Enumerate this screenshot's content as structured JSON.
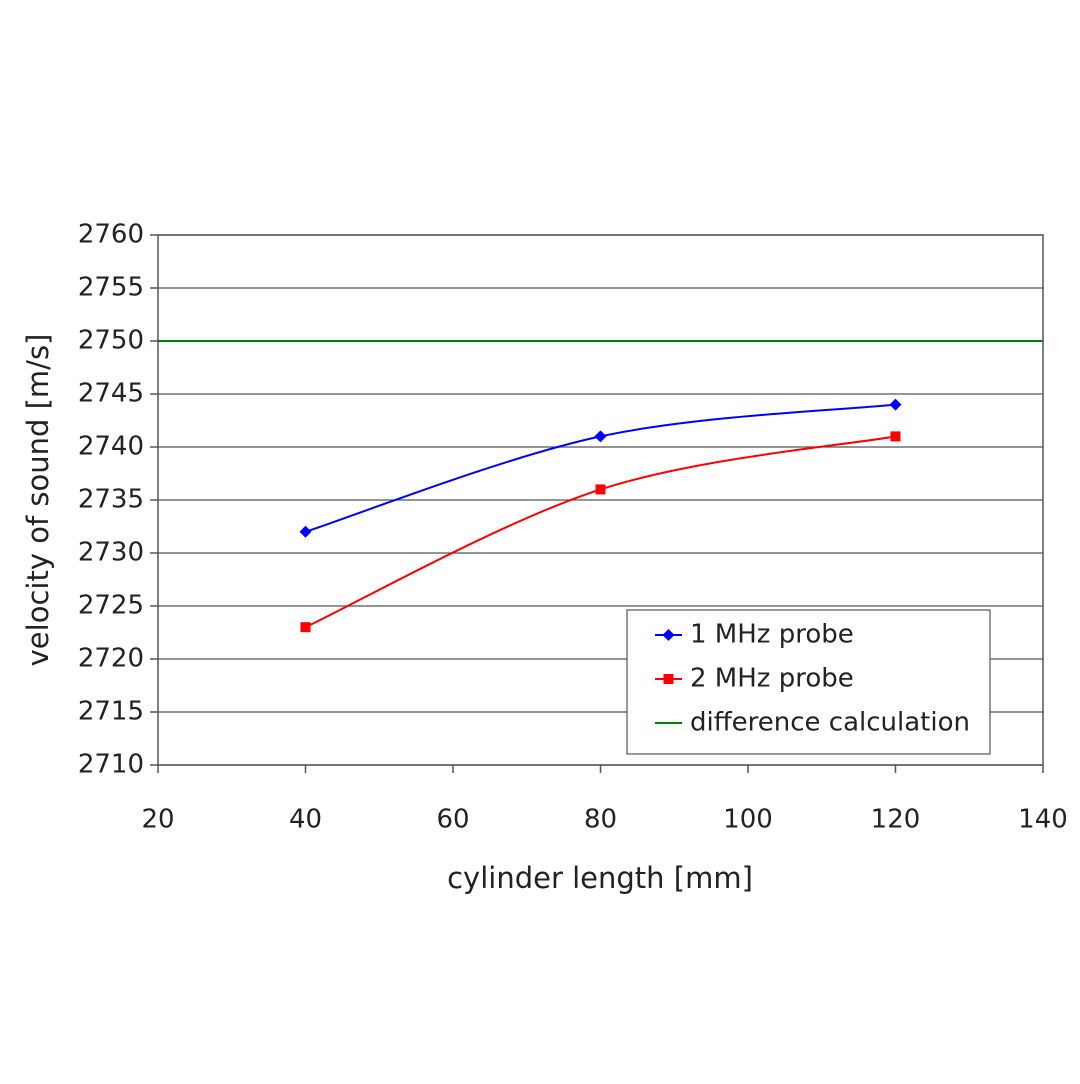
{
  "chart_data": {
    "type": "line",
    "xlabel": "cylinder length [mm]",
    "ylabel": "velocity of sound [m/s]",
    "xlim": [
      20,
      140
    ],
    "xticks": [
      20,
      40,
      60,
      80,
      100,
      120,
      140
    ],
    "ylim": [
      2710,
      2760
    ],
    "yticks": [
      2710,
      2715,
      2720,
      2725,
      2730,
      2735,
      2740,
      2745,
      2750,
      2755,
      2760
    ],
    "grid": true,
    "legend": "lower right",
    "series": [
      {
        "name": "1 MHz probe",
        "color": "#0000ff",
        "marker": "diamond",
        "x": [
          40,
          80,
          120
        ],
        "values": [
          2732,
          2741,
          2744
        ]
      },
      {
        "name": "2 MHz probe",
        "color": "#ff0000",
        "marker": "square",
        "x": [
          40,
          80,
          120
        ],
        "values": [
          2723,
          2736,
          2741
        ]
      },
      {
        "name": "difference calculation",
        "color": "#008000",
        "marker": "none",
        "x": [
          20,
          140
        ],
        "values": [
          2750,
          2750
        ]
      }
    ]
  }
}
